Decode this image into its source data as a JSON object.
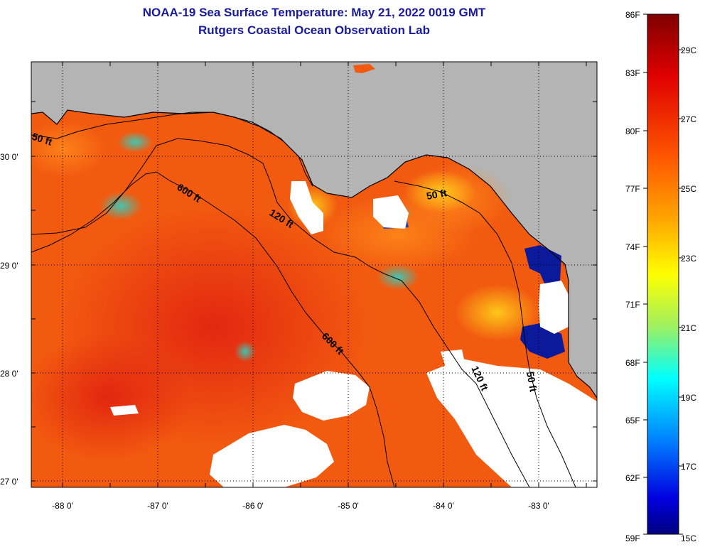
{
  "title": {
    "line1": "NOAA-19 Sea Surface Temperature:  May 21, 2022 0019 GMT",
    "line2": "Rutgers Coastal Ocean Observation Lab"
  },
  "colors": {
    "land": "#b4b4b4",
    "no_data": "#ffffff",
    "ocean_dominant": "#f25a10",
    "title_text": "#1a1a9c"
  },
  "map": {
    "lat_labels": [
      "30 0'",
      "29 0'",
      "28 0'",
      "27 0'"
    ],
    "lon_labels": [
      "-88 0'",
      "-87 0'",
      "-86 0'",
      "-85 0'",
      "-84 0'",
      "-83 0'"
    ],
    "contour_labels": [
      "50 ft",
      "600 ft",
      "120 ft",
      "50 ft",
      "600 ft",
      "120 ft",
      "50 ft"
    ],
    "grid": "dotted"
  },
  "colorbar": {
    "f_labels": [
      "86F",
      "83F",
      "80F",
      "77F",
      "74F",
      "71F",
      "68F",
      "65F",
      "62F",
      "59F"
    ],
    "c_labels": [
      "29C",
      "27C",
      "25C",
      "23C",
      "21C",
      "19C",
      "17C",
      "15C"
    ]
  }
}
